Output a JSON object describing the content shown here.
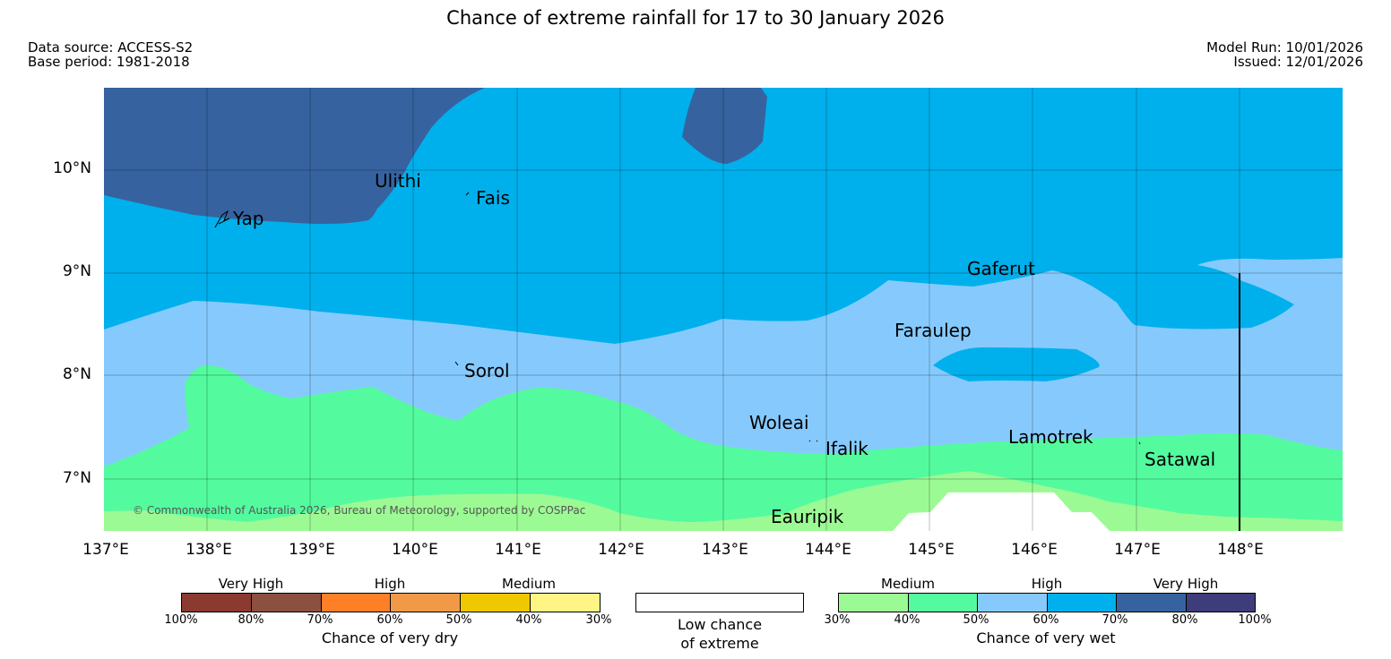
{
  "title": "Chance of extreme rainfall for 17 to 30 January 2026",
  "meta": {
    "data_source": "Data source: ACCESS-S2",
    "base_period": "Base period: 1981-2018",
    "model_run": "Model Run: 10/01/2026",
    "issued": "Issued: 12/01/2026"
  },
  "axes": {
    "y_labels": [
      "10°N",
      "9°N",
      "8°N",
      "7°N"
    ],
    "x_labels": [
      "137°E",
      "138°E",
      "139°E",
      "140°E",
      "141°E",
      "142°E",
      "143°E",
      "144°E",
      "145°E",
      "146°E",
      "147°E",
      "148°E"
    ]
  },
  "places": [
    "Ulithi",
    "Fais",
    "Yap",
    "Gaferut",
    "Faraulep",
    "Sorol",
    "Woleai",
    "Ifalik",
    "Lamotrek",
    "Satawal",
    "Eauripik"
  ],
  "copyright": "© Commonwealth of Australia 2026, Bureau of Meteorology, supported by COSPPac",
  "legend": {
    "dry": {
      "categories": [
        "Very High",
        "High",
        "Medium"
      ],
      "ticks": [
        "100%",
        "80%",
        "70%",
        "60%",
        "50%",
        "40%",
        "30%"
      ],
      "caption": "Chance of very dry",
      "colors": [
        "#8b3a30",
        "#8c5040",
        "#ff7f27",
        "#f09a48",
        "#f0c800",
        "#fff585"
      ]
    },
    "low": {
      "line1": "Low chance",
      "line2": "of extreme"
    },
    "wet": {
      "categories": [
        "Medium",
        "High",
        "Very High"
      ],
      "ticks": [
        "30%",
        "40%",
        "50%",
        "60%",
        "70%",
        "80%",
        "100%"
      ],
      "caption": "Chance of very wet",
      "colors": [
        "#9cfa94",
        "#53fb9e",
        "#86cafd",
        "#00b0ec",
        "#36639f",
        "#3f3c7c"
      ]
    }
  },
  "map_colors": {
    "medium_30_40": "#9cfa94",
    "medium_40_50": "#53fb9e",
    "high_50_60": "#86cafd",
    "high_60_70": "#00b0ec",
    "very_high_70_80": "#36639f",
    "low_chance": "#ffffff"
  }
}
